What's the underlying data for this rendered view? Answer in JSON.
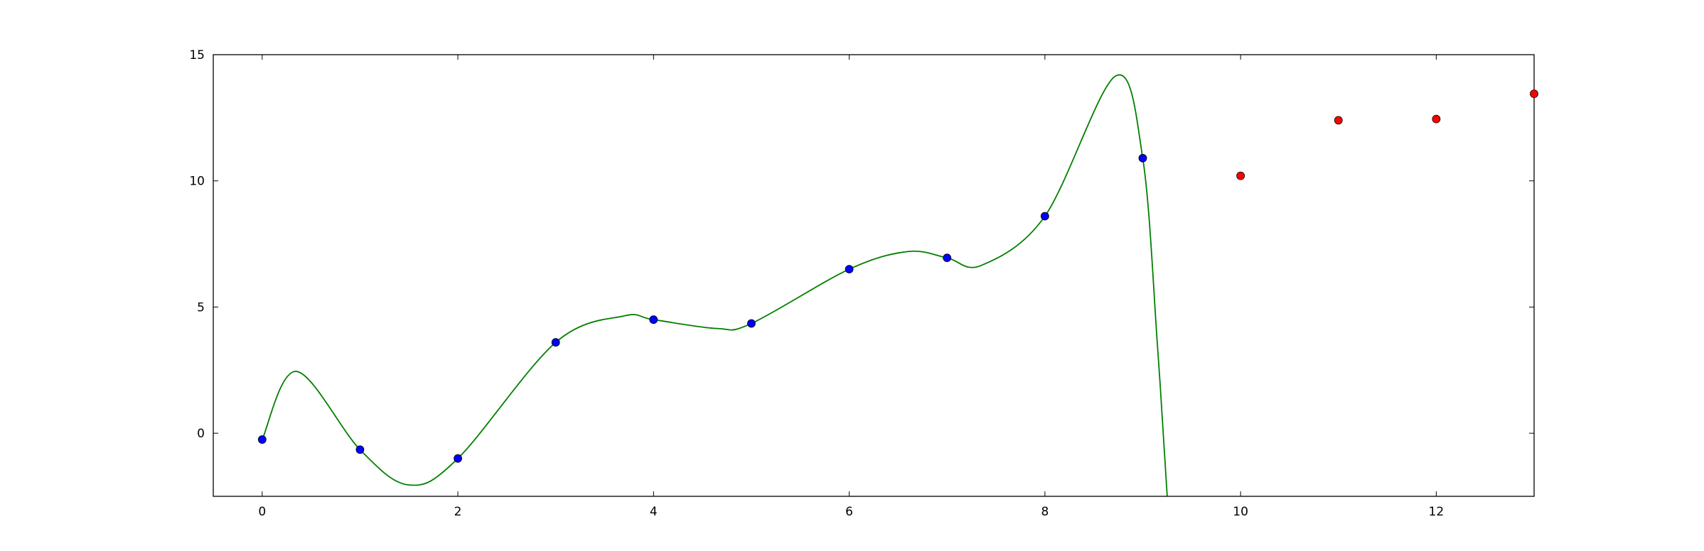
{
  "chart_data": {
    "type": "scatter",
    "title": "",
    "xlabel": "",
    "ylabel": "",
    "xlim": [
      -0.5,
      13
    ],
    "ylim": [
      -2.5,
      15
    ],
    "x_ticks": [
      0,
      2,
      4,
      6,
      8,
      10,
      12
    ],
    "y_ticks": [
      0,
      5,
      10,
      15
    ],
    "grid": false,
    "legend": "none",
    "series": [
      {
        "kind": "points",
        "color": "#0000ff",
        "x": [
          0,
          1,
          2,
          3,
          4,
          5,
          6,
          7,
          8,
          9
        ],
        "y": [
          -0.25,
          -0.65,
          -1.0,
          3.6,
          4.5,
          4.35,
          6.5,
          6.95,
          8.6,
          10.9
        ]
      },
      {
        "kind": "points",
        "color": "#ff0000",
        "x": [
          10,
          11,
          12,
          13
        ],
        "y": [
          10.2,
          12.4,
          12.45,
          13.45
        ]
      },
      {
        "kind": "line",
        "color": "#008000",
        "x": [
          0,
          0.35,
          1,
          1.5,
          2,
          3,
          3.7,
          4,
          4.65,
          5,
          6,
          6.6,
          7,
          7.35,
          8,
          8.72,
          9,
          9.15,
          9.25
        ],
        "y": [
          -0.25,
          2.45,
          -0.65,
          -2.05,
          -1.0,
          3.6,
          4.65,
          4.5,
          4.15,
          4.35,
          6.5,
          7.2,
          6.95,
          6.65,
          8.6,
          14.15,
          10.9,
          3.5,
          -2.5
        ]
      }
    ]
  }
}
